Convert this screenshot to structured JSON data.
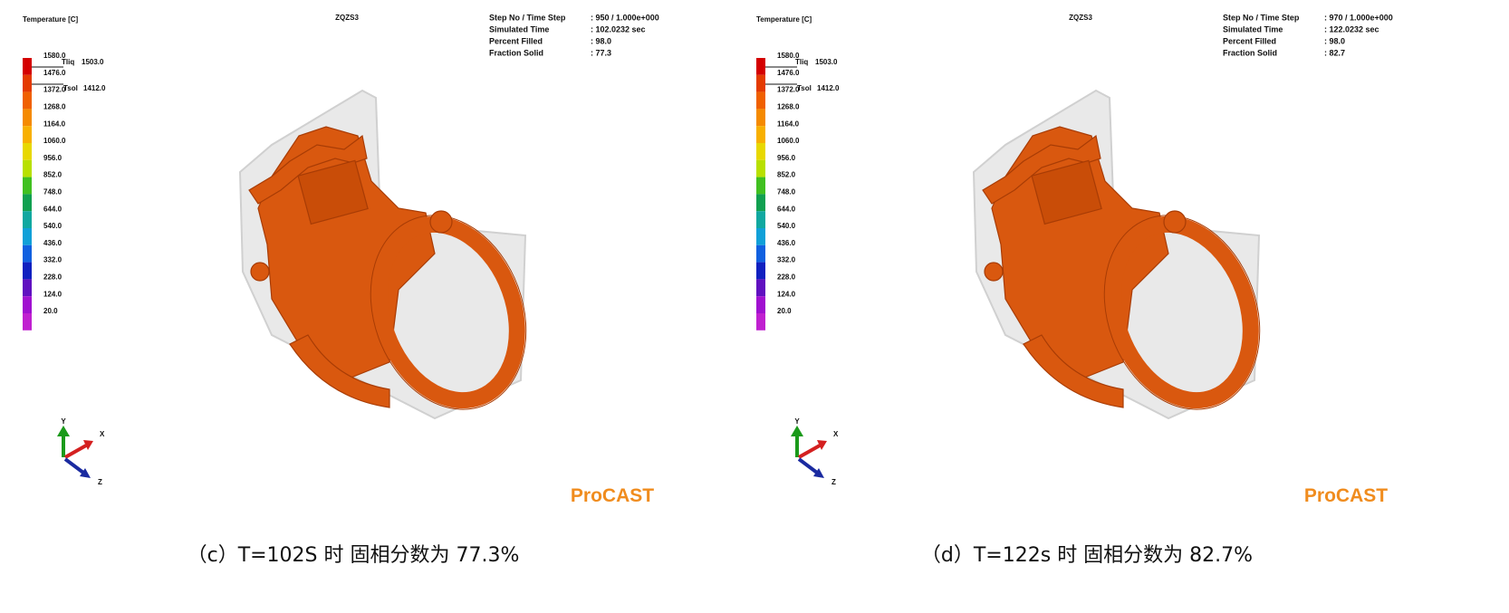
{
  "panels": [
    {
      "legend_title": "Temperature [C]",
      "model": "ZQZS3",
      "scale": [
        "1580.0",
        "1476.0",
        "1372.0",
        "1268.0",
        "1164.0",
        "1060.0",
        "956.0",
        "852.0",
        "748.0",
        "644.0",
        "540.0",
        "436.0",
        "332.0",
        "228.0",
        "124.0",
        "20.0"
      ],
      "tliq": {
        "label": "Tliq",
        "value": "1503.0"
      },
      "tsol": {
        "label": "Tsol",
        "value": "1412.0"
      },
      "info": [
        [
          "Step No / Time Step",
          ": 950 / 1.000e+000"
        ],
        [
          "Simulated Time",
          ": 102.0232 sec"
        ],
        [
          "Percent Filled",
          ": 98.0"
        ],
        [
          "Fraction Solid",
          ": 77.3"
        ]
      ],
      "axes": [
        "Y",
        "X",
        "Z"
      ],
      "logo": "ProCAST",
      "caption": "（c）T=102S 时 固相分数为 77.3%"
    },
    {
      "legend_title": "Temperature [C]",
      "model": "ZQZS3",
      "scale": [
        "1580.0",
        "1476.0",
        "1372.0",
        "1268.0",
        "1164.0",
        "1060.0",
        "956.0",
        "852.0",
        "748.0",
        "644.0",
        "540.0",
        "436.0",
        "332.0",
        "228.0",
        "124.0",
        "20.0"
      ],
      "tliq": {
        "label": "Tliq",
        "value": "1503.0"
      },
      "tsol": {
        "label": "Tsol",
        "value": "1412.0"
      },
      "info": [
        [
          "Step No / Time Step",
          ": 970 / 1.000e+000"
        ],
        [
          "Simulated Time",
          ": 122.0232 sec"
        ],
        [
          "Percent Filled",
          ": 98.0"
        ],
        [
          "Fraction Solid",
          ": 82.7"
        ]
      ],
      "axes": [
        "Y",
        "X",
        "Z"
      ],
      "logo": "ProCAST",
      "caption": "（d）T=122s 时 固相分数为 82.7%"
    }
  ]
}
